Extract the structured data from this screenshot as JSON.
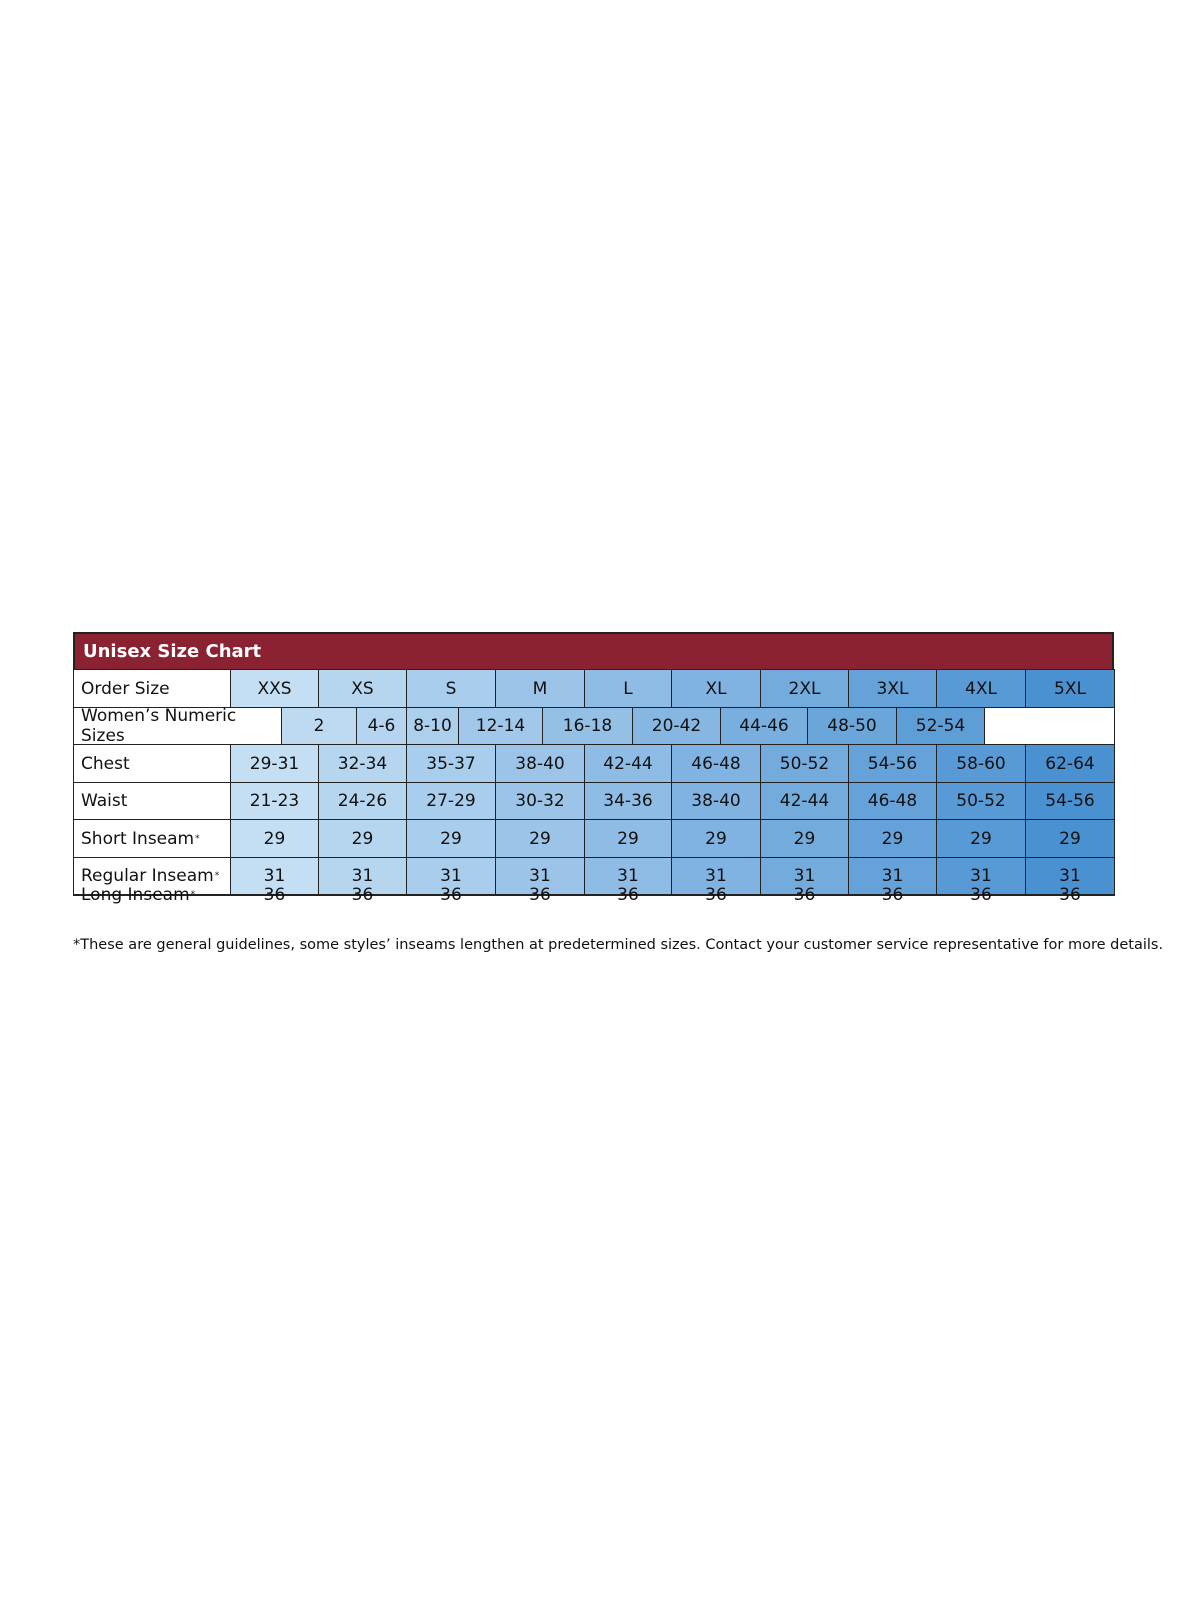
{
  "title": "Unisex Size Chart",
  "colors": {
    "title_bar": "#8a2232",
    "cell_light": "#c4def3",
    "cell_dark": "#4a91d2",
    "border": "#222222"
  },
  "order_size": {
    "label": "Order Size",
    "values": [
      "XXS",
      "XS",
      "S",
      "M",
      "L",
      "XL",
      "2XL",
      "3XL",
      "4XL",
      "5XL"
    ]
  },
  "womens": {
    "label": "Women’s Numeric Sizes",
    "values": [
      "2",
      "4-6",
      "8-10",
      "12-14",
      "16-18",
      "20-42",
      "44-46",
      "48-50",
      "52-54"
    ]
  },
  "rows": [
    {
      "label": "Chest",
      "asterisk": "",
      "values": [
        "29-31",
        "32-34",
        "35-37",
        "38-40",
        "42-44",
        "46-48",
        "50-52",
        "54-56",
        "58-60",
        "62-64"
      ]
    },
    {
      "label": "Waist",
      "asterisk": "",
      "values": [
        "21-23",
        "24-26",
        "27-29",
        "30-32",
        "34-36",
        "38-40",
        "42-44",
        "46-48",
        "50-52",
        "54-56"
      ]
    },
    {
      "label": "Short Inseam",
      "asterisk": "*",
      "values": [
        "29",
        "29",
        "29",
        "29",
        "29",
        "29",
        "29",
        "29",
        "29",
        "29"
      ]
    },
    {
      "label": "Regular Inseam",
      "asterisk": "*",
      "values": [
        "31",
        "31",
        "31",
        "31",
        "31",
        "31",
        "31",
        "31",
        "31",
        "31"
      ]
    },
    {
      "label": "Long Inseam",
      "asterisk": "*",
      "values": [
        "36",
        "36",
        "36",
        "36",
        "36",
        "36",
        "36",
        "36",
        "36",
        "36"
      ]
    }
  ],
  "footnote": "*These are general guidelines, some styles’ inseams lengthen at predetermined sizes.  Contact your customer service representative for more details."
}
